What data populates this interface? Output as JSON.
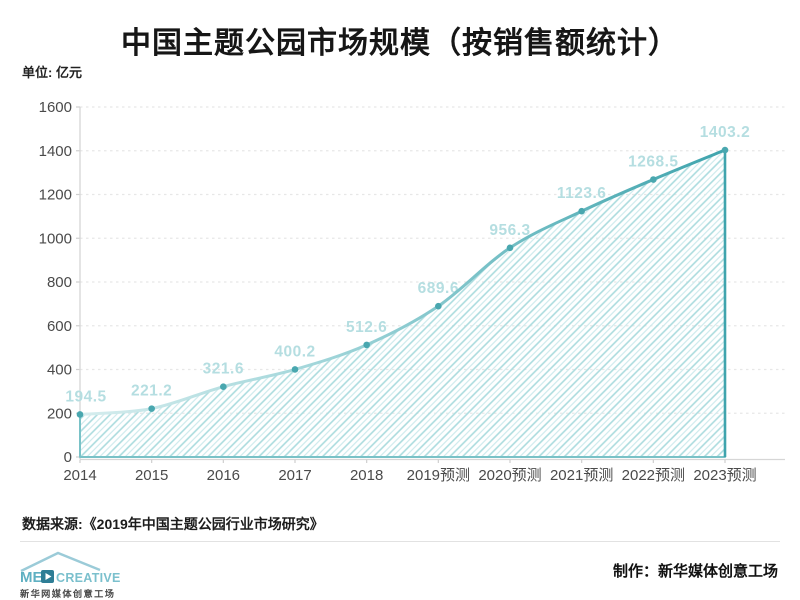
{
  "title": "中国主题公园市场规模（按销售额统计）",
  "unit_label": "单位: 亿元",
  "chart_data": {
    "type": "area",
    "title": "中国主题公园市场规模（按销售额统计）",
    "ylabel": "单位: 亿元",
    "categories": [
      "2014",
      "2015",
      "2016",
      "2017",
      "2018",
      "2019预测",
      "2020预测",
      "2021预测",
      "2022预测",
      "2023预测"
    ],
    "values": [
      194.5,
      221.2,
      321.6,
      400.2,
      512.6,
      689.6,
      956.3,
      1123.6,
      1268.5,
      1403.2
    ],
    "ylim": [
      0,
      1600
    ],
    "ytick_step": 200,
    "grid": "horizontal-dashed",
    "legend": "none",
    "line_color": "#3fa4ad",
    "line_color_light": "#cdeaeb",
    "marker_color": "#49a7af",
    "hatch_color": "#a7d9dc",
    "hatch_color_light": "#cdeaec",
    "area_border_color": "#79c2c7",
    "value_label_color": "#b5dee1",
    "axis_text_color": "#4a4a4a",
    "grid_color": "#e7e7e7",
    "axis_line_color": "#d6d6d6"
  },
  "footer": {
    "source": "数据来源:《2019年中国主题公园行业市场研究》",
    "credit": "制作：新华媒体创意工场"
  },
  "logo": {
    "text_me": "ME",
    "text_creative": "CREATIVE",
    "subtitle": "新华网媒体创意工场",
    "accent": "#5fb0c2",
    "dark_accent": "#2e7d95"
  }
}
